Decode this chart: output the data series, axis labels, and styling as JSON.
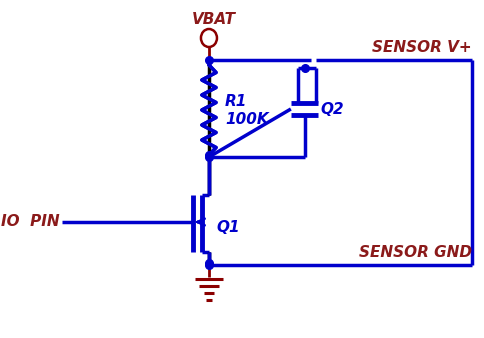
{
  "bg_color": "#ffffff",
  "line_color": "#0000cc",
  "dark_line_color": "#000080",
  "label_color": "#8B1A1A",
  "gnd_color": "#8B0000",
  "vbat_label": "VBAT",
  "r1_label": "R1",
  "r1_val": "100K",
  "q1_label": "Q1",
  "q2_label": "Q2",
  "sensor_vplus": "SENSOR V+",
  "sensor_gnd": "SENSOR GND",
  "io_pin": "IO  PIN"
}
